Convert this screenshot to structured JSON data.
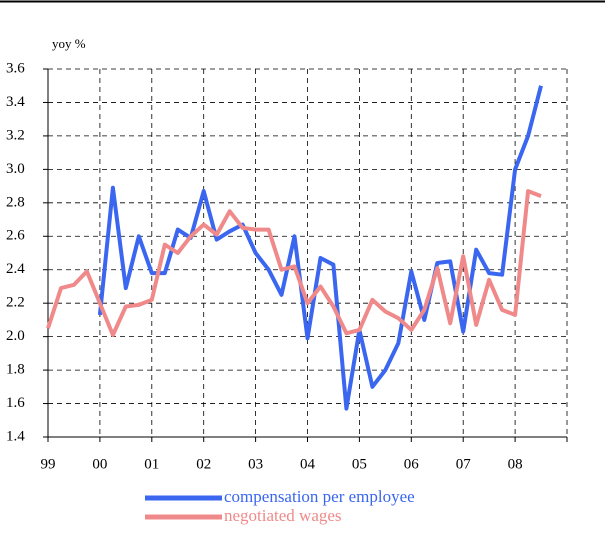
{
  "chart_data": {
    "type": "line",
    "y_label": "yoy %",
    "categories": [
      "99",
      null,
      null,
      null,
      "00",
      null,
      null,
      null,
      "01",
      null,
      null,
      null,
      "02",
      null,
      null,
      null,
      "03",
      null,
      null,
      null,
      "04",
      null,
      null,
      null,
      "05",
      null,
      null,
      null,
      "06",
      null,
      null,
      null,
      "07",
      null,
      null,
      null,
      "08",
      null,
      null
    ],
    "series": [
      {
        "name": "compensation per employee",
        "color": "#3a66f0",
        "values": [
          null,
          null,
          null,
          null,
          2.13,
          2.89,
          2.29,
          2.6,
          2.38,
          2.38,
          2.64,
          2.59,
          2.87,
          2.58,
          2.63,
          2.67,
          2.5,
          2.4,
          2.25,
          2.6,
          1.99,
          2.47,
          2.43,
          1.57,
          2.04,
          1.7,
          1.8,
          1.96,
          2.39,
          2.1,
          2.44,
          2.45,
          2.03,
          2.52,
          2.38,
          2.37,
          3.0,
          3.2,
          3.5
        ]
      },
      {
        "name": "negotiated wages",
        "color": "#f08a8a",
        "values": [
          2.05,
          2.29,
          2.31,
          2.39,
          2.2,
          2.01,
          2.18,
          2.19,
          2.22,
          2.55,
          2.5,
          2.6,
          2.67,
          2.61,
          2.75,
          2.65,
          2.64,
          2.64,
          2.4,
          2.42,
          2.2,
          2.3,
          2.18,
          2.02,
          2.04,
          2.22,
          2.15,
          2.11,
          2.04,
          2.16,
          2.41,
          2.08,
          2.48,
          2.07,
          2.34,
          2.16,
          2.13,
          2.87,
          2.84
        ]
      }
    ],
    "ylim": [
      1.4,
      3.6
    ],
    "yticks": [
      {
        "value": 1.4,
        "label": "1.4"
      },
      {
        "value": 1.6,
        "label": "1.6"
      },
      {
        "value": 1.8,
        "label": "1.8"
      },
      {
        "value": 2.0,
        "label": "2.0"
      },
      {
        "value": 2.2,
        "label": "2.2"
      },
      {
        "value": 2.4,
        "label": "2.4"
      },
      {
        "value": 2.6,
        "label": "2.6"
      },
      {
        "value": 2.8,
        "label": "2.8"
      },
      {
        "value": 3.0,
        "label": "3.0"
      },
      {
        "value": 3.2,
        "label": "3.2"
      },
      {
        "value": 3.4,
        "label": "3.4"
      },
      {
        "value": 3.6,
        "label": "3.6"
      }
    ],
    "grid": true
  }
}
